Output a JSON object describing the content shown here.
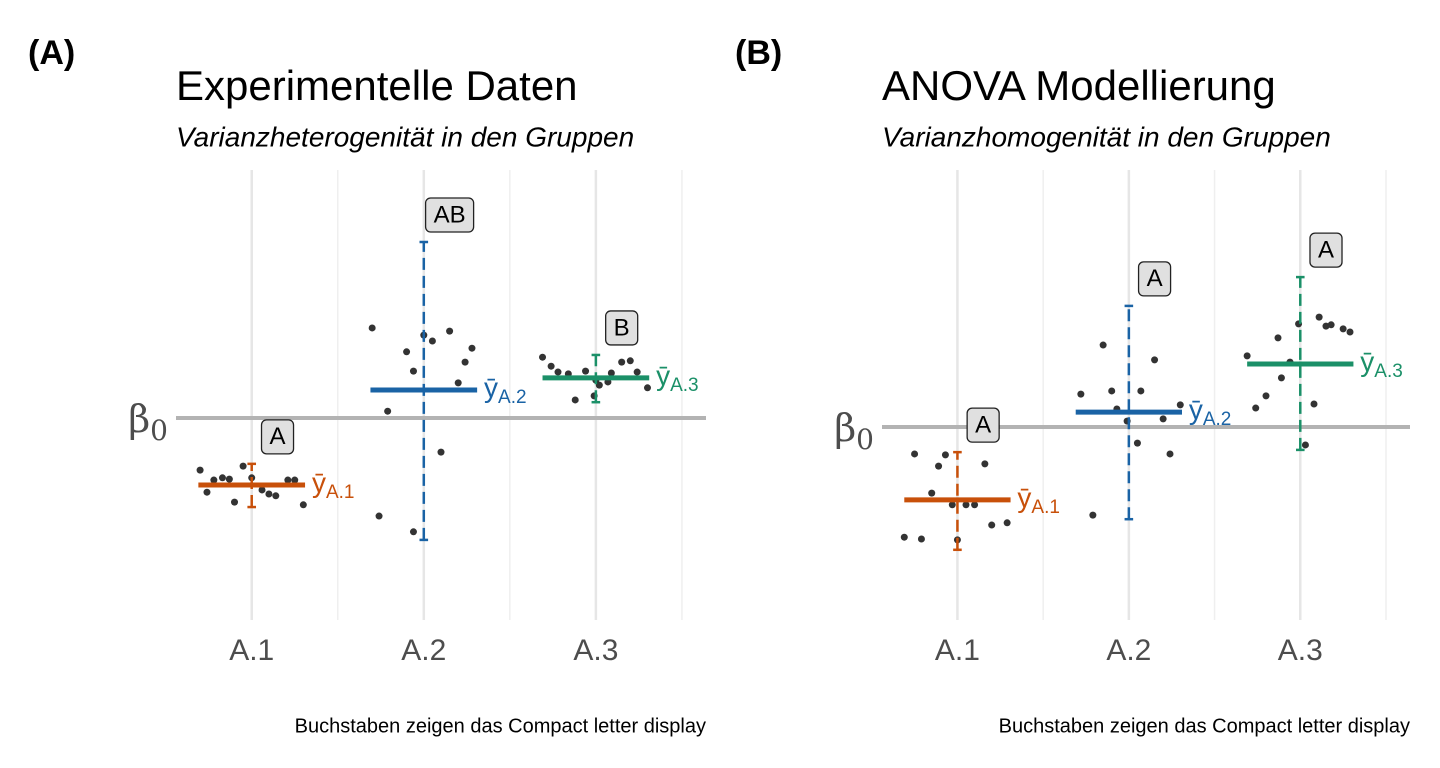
{
  "chart_data": [
    {
      "type": "strip",
      "panel_label": "(A)",
      "title": "Experimentelle Daten",
      "subtitle": "Varianzheterogenität in den Gruppen",
      "caption": "Buchstaben zeigen das Compact letter display",
      "categories": [
        "A.1",
        "A.2",
        "A.3"
      ],
      "xlim": [
        0.56,
        3.64
      ],
      "ylim": [
        0,
        10
      ],
      "grid": true,
      "reference": {
        "value": 4.49,
        "main": "β",
        "sub": "0",
        "color": "#b3b3b3"
      },
      "groups": [
        {
          "color": "#c8500a",
          "mean": 3.0,
          "error_low": 2.51,
          "error_high": 3.47,
          "letter": "A",
          "mean_label": {
            "main": "ȳ",
            "sub": "A.1"
          },
          "points_x": [
            0.7,
            0.74,
            0.78,
            0.83,
            0.9,
            0.87,
            0.95,
            1.0,
            1.06,
            1.14,
            1.21,
            1.25,
            1.3,
            1.1
          ],
          "points_y": [
            3.33,
            2.84,
            3.11,
            3.16,
            2.62,
            3.13,
            3.42,
            3.16,
            2.89,
            2.76,
            3.11,
            3.11,
            2.56,
            2.8
          ]
        },
        {
          "color": "#1a63a5",
          "mean": 5.11,
          "error_low": 1.78,
          "error_high": 8.4,
          "letter": "AB",
          "mean_label": {
            "main": "ȳ",
            "sub": "A.2"
          },
          "points_x": [
            1.7,
            1.74,
            1.79,
            1.9,
            1.94,
            2.0,
            2.05,
            2.1,
            2.15,
            2.2,
            2.24,
            2.28,
            1.94
          ],
          "points_y": [
            6.49,
            2.31,
            4.64,
            5.96,
            5.53,
            6.33,
            6.2,
            3.73,
            6.42,
            5.27,
            5.73,
            6.04,
            1.96
          ]
        },
        {
          "color": "#1b9068",
          "mean": 5.38,
          "error_low": 4.84,
          "error_high": 5.89,
          "letter": "B",
          "mean_label": {
            "main": "ȳ",
            "sub": "A.3"
          },
          "points_x": [
            2.69,
            2.74,
            2.78,
            2.84,
            2.88,
            2.94,
            2.99,
            3.02,
            3.09,
            3.15,
            3.2,
            3.24,
            3.3,
            3.07,
            3.0
          ],
          "points_y": [
            5.84,
            5.64,
            5.51,
            5.47,
            4.89,
            5.53,
            4.98,
            5.22,
            5.49,
            5.73,
            5.76,
            5.51,
            5.16,
            5.29,
            5.33
          ]
        }
      ]
    },
    {
      "type": "strip",
      "panel_label": "(B)",
      "title": "ANOVA Modellierung",
      "subtitle": "Varianzhomogenität in den Gruppen",
      "caption": "Buchstaben zeigen das Compact letter display",
      "categories": [
        "A.1",
        "A.2",
        "A.3"
      ],
      "xlim": [
        0.56,
        3.64
      ],
      "ylim": [
        0,
        10
      ],
      "grid": true,
      "reference": {
        "value": 4.29,
        "main": "β",
        "sub": "0",
        "color": "#b3b3b3"
      },
      "groups": [
        {
          "color": "#c8500a",
          "mean": 2.67,
          "error_low": 1.56,
          "error_high": 3.73,
          "letter": "A",
          "mean_label": {
            "main": "ȳ",
            "sub": "A.1"
          },
          "points_x": [
            0.69,
            0.79,
            0.75,
            0.85,
            0.89,
            0.93,
            0.97,
            1.0,
            1.05,
            1.1,
            1.16,
            1.2,
            1.29
          ],
          "points_y": [
            1.84,
            1.8,
            3.69,
            2.82,
            3.42,
            3.67,
            2.56,
            1.78,
            2.56,
            2.56,
            3.47,
            2.11,
            2.16
          ]
        },
        {
          "color": "#1a63a5",
          "mean": 4.62,
          "error_low": 2.24,
          "error_high": 6.98,
          "letter": "A",
          "mean_label": {
            "main": "ȳ",
            "sub": "A.2"
          },
          "points_x": [
            1.72,
            1.79,
            1.85,
            1.9,
            1.93,
            1.99,
            2.05,
            2.07,
            2.15,
            2.2,
            2.24,
            2.3
          ],
          "points_y": [
            5.02,
            2.33,
            6.11,
            5.09,
            4.69,
            4.42,
            3.93,
            5.09,
            5.78,
            4.47,
            3.69,
            4.78
          ]
        },
        {
          "color": "#1b9068",
          "mean": 5.69,
          "error_low": 3.78,
          "error_high": 7.62,
          "letter": "A",
          "mean_label": {
            "main": "ȳ",
            "sub": "A.3"
          },
          "points_x": [
            2.69,
            2.74,
            2.8,
            2.87,
            2.89,
            2.94,
            2.99,
            3.03,
            3.08,
            3.11,
            3.15,
            3.18,
            3.25,
            3.29
          ],
          "points_y": [
            5.87,
            4.71,
            4.98,
            6.27,
            5.38,
            5.73,
            6.58,
            3.89,
            4.8,
            6.73,
            6.53,
            6.56,
            6.47,
            6.4
          ]
        }
      ]
    }
  ]
}
